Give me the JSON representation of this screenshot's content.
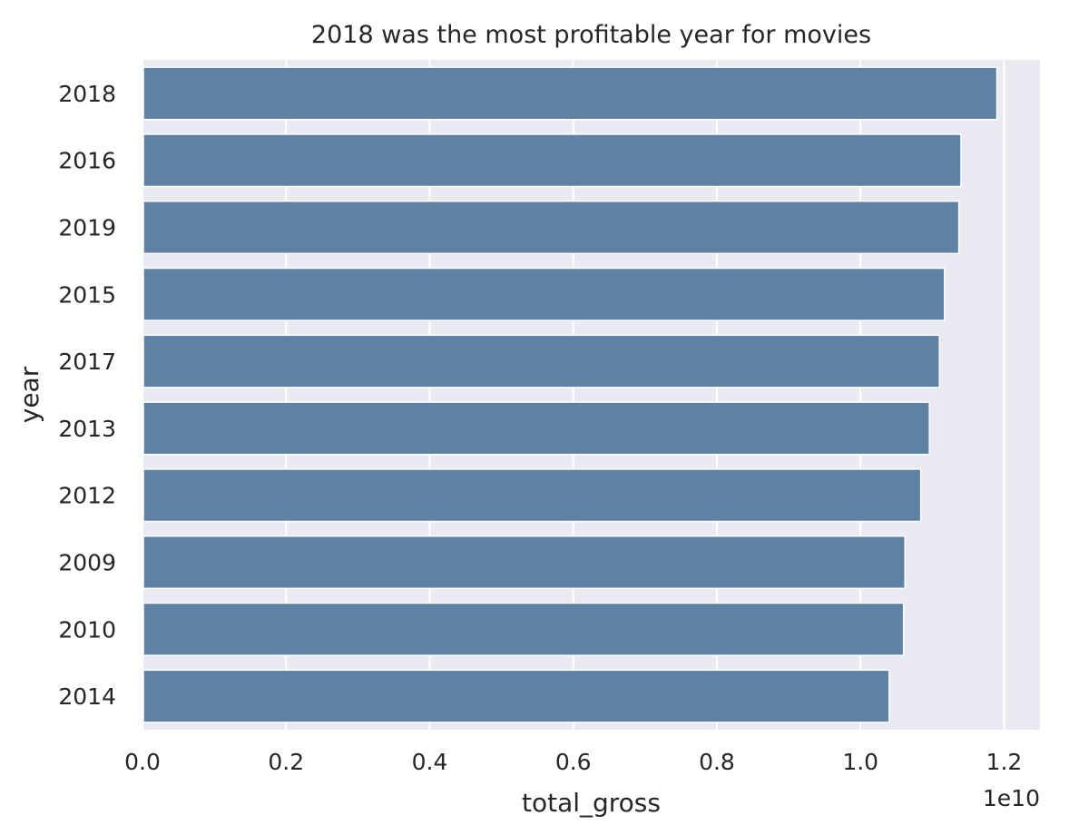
{
  "chart_data": {
    "type": "bar",
    "orientation": "horizontal",
    "title": "2018 was the most profitable year for movies",
    "xlabel": "total_gross",
    "ylabel": "year",
    "categories": [
      "2018",
      "2016",
      "2019",
      "2015",
      "2017",
      "2013",
      "2012",
      "2009",
      "2010",
      "2014"
    ],
    "values": [
      11.9,
      11.4,
      11.37,
      11.17,
      11.1,
      10.96,
      10.84,
      10.62,
      10.6,
      10.4
    ],
    "value_scale_label": "1e10",
    "xlim": [
      0,
      1.25
    ],
    "xticks": [
      "0.0",
      "0.2",
      "0.4",
      "0.6",
      "0.8",
      "1.0",
      "1.2"
    ],
    "grid": true,
    "bar_color": "#5e81a4",
    "background_color": "#eaeaf2",
    "grid_color": "#ffffff"
  }
}
